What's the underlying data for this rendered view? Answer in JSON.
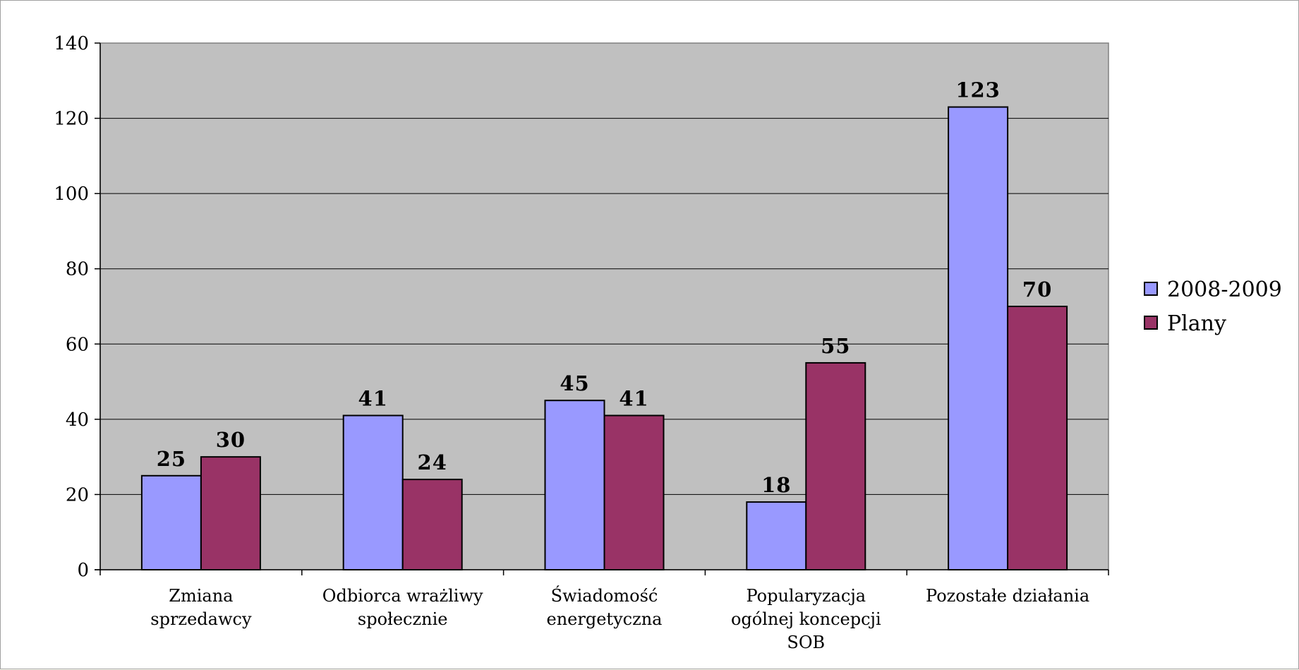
{
  "chart_data": {
    "type": "bar",
    "categories": [
      [
        "Zmiana",
        "sprzedawcy"
      ],
      [
        "Odbiorca wrażliwy",
        "społecznie"
      ],
      [
        "Świadomość",
        "energetyczna"
      ],
      [
        "Popularyzacja",
        "ogólnej koncepcji",
        "SOB"
      ],
      [
        "Pozostałe działania"
      ]
    ],
    "series": [
      {
        "name": "2008-2009",
        "values": [
          25,
          41,
          45,
          18,
          123
        ],
        "color": "#9999ff"
      },
      {
        "name": "Plany",
        "values": [
          30,
          24,
          41,
          55,
          70
        ],
        "color": "#993366"
      }
    ],
    "ylim": [
      0,
      140
    ],
    "yticks": [
      0,
      20,
      40,
      60,
      80,
      100,
      120,
      140
    ],
    "grid": true,
    "plot_background": "#c0c0c0",
    "data_labels": true,
    "legend_position": "right"
  }
}
